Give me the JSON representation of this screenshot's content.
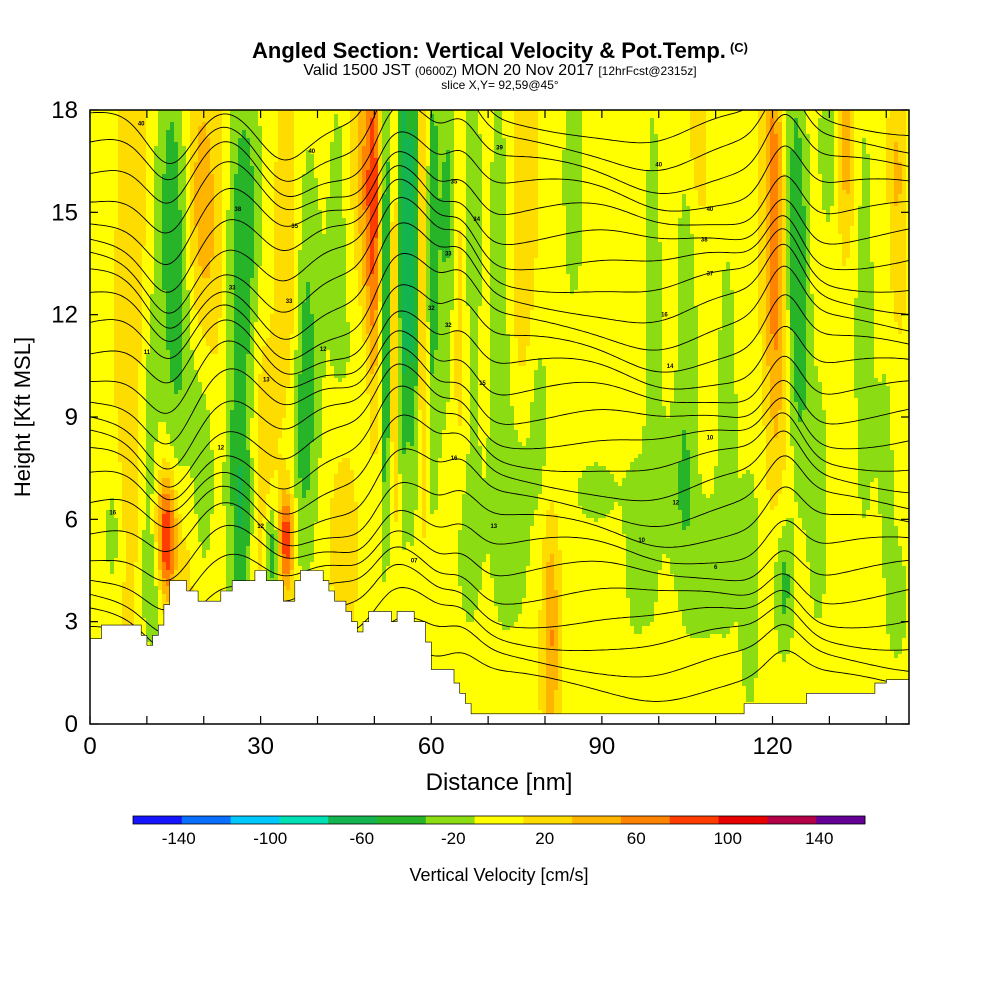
{
  "title": {
    "main": "Angled Section: Vertical Velocity & Pot.Temp.",
    "copyright": "(C)",
    "valid_prefix": "Valid 1500 JST",
    "valid_utc": "(0600Z)",
    "valid_date": "MON 20 Nov 2017",
    "forecast": "[12hrFcst@2315z]",
    "slice": "slice X,Y= 92,59@45°"
  },
  "chart_data": {
    "type": "heatmap",
    "xlabel": "Distance [nm]",
    "ylabel": "Height [Kft MSL]",
    "xlim": [
      0,
      144
    ],
    "ylim": [
      0,
      18
    ],
    "x_ticks": [
      0,
      30,
      60,
      90,
      120
    ],
    "y_ticks": [
      0,
      3,
      6,
      9,
      12,
      15,
      18
    ],
    "colorbar": {
      "label": "Vertical Velocity [cm/s]",
      "tick_labels": [
        "-140",
        "-100",
        "-60",
        "-20",
        "20",
        "60",
        "100",
        "140"
      ],
      "tick_values": [
        -140,
        -100,
        -60,
        -20,
        20,
        60,
        100,
        140
      ],
      "range": [
        -160,
        160
      ],
      "colors": [
        "#1414ff",
        "#0a6eff",
        "#00c8ff",
        "#00e0b4",
        "#14b450",
        "#28b428",
        "#8cdc14",
        "#ffff00",
        "#ffdc00",
        "#ffb400",
        "#ff8200",
        "#ff3c00",
        "#e60000",
        "#b40046",
        "#640096"
      ]
    },
    "background_value": 5,
    "features": [
      {
        "x": 4,
        "z": 5.5,
        "sx": 1.2,
        "sz": 1.4,
        "v": -25
      },
      {
        "x": 8,
        "z": 11,
        "sx": 2,
        "sz": 7,
        "v": 28
      },
      {
        "x": 10,
        "z": 8,
        "sx": 1.4,
        "sz": 4,
        "v": -35
      },
      {
        "x": 12,
        "z": 3.8,
        "sx": 2,
        "sz": 1.2,
        "v": -30
      },
      {
        "x": 13.5,
        "z": 5.3,
        "sx": 1.2,
        "sz": 1.4,
        "v": 110
      },
      {
        "x": 14,
        "z": 15,
        "sx": 2,
        "sz": 4,
        "v": -40
      },
      {
        "x": 16,
        "z": 10,
        "sx": 1.8,
        "sz": 5,
        "v": -30
      },
      {
        "x": 17,
        "z": 5,
        "sx": 1.5,
        "sz": 3,
        "v": 30
      },
      {
        "x": 19,
        "z": 15,
        "sx": 1.8,
        "sz": 3,
        "v": 35
      },
      {
        "x": 20,
        "z": 8,
        "sx": 2,
        "sz": 3,
        "v": -40
      },
      {
        "x": 22,
        "z": 12,
        "sx": 2,
        "sz": 5,
        "v": 25
      },
      {
        "x": 26,
        "z": 10,
        "sx": 2,
        "sz": 6,
        "v": -45
      },
      {
        "x": 27,
        "z": 6,
        "sx": 1.2,
        "sz": 2,
        "v": -30
      },
      {
        "x": 28,
        "z": 15,
        "sx": 2,
        "sz": 3,
        "v": -30
      },
      {
        "x": 30,
        "z": 7,
        "sx": 1.5,
        "sz": 4,
        "v": 25
      },
      {
        "x": 32,
        "z": 5,
        "sx": 1,
        "sz": 1,
        "v": -60
      },
      {
        "x": 34.5,
        "z": 5.4,
        "sx": 1,
        "sz": 1,
        "v": 95
      },
      {
        "x": 35,
        "z": 13,
        "sx": 1.5,
        "sz": 4,
        "v": 35
      },
      {
        "x": 37,
        "z": 8,
        "sx": 2,
        "sz": 3,
        "v": -30
      },
      {
        "x": 38,
        "z": 12,
        "sx": 1.8,
        "sz": 4,
        "v": -35
      },
      {
        "x": 44,
        "z": 14,
        "sx": 2,
        "sz": 5,
        "v": -25
      },
      {
        "x": 45,
        "z": 6,
        "sx": 2,
        "sz": 2,
        "v": 30
      },
      {
        "x": 48,
        "z": 16,
        "sx": 2,
        "sz": 3,
        "v": 35
      },
      {
        "x": 49,
        "z": 9,
        "sx": 2,
        "sz": 3,
        "v": -30
      },
      {
        "x": 50,
        "z": 14,
        "sx": 1.2,
        "sz": 5,
        "v": 70
      },
      {
        "x": 52,
        "z": 13,
        "sx": 0.8,
        "sz": 5,
        "v": -85
      },
      {
        "x": 53.5,
        "z": 12,
        "sx": 0.8,
        "sz": 4,
        "v": 55
      },
      {
        "x": 55,
        "z": 14,
        "sx": 0.8,
        "sz": 5,
        "v": -80
      },
      {
        "x": 57,
        "z": 14,
        "sx": 0.8,
        "sz": 5,
        "v": -75
      },
      {
        "x": 58.5,
        "z": 14,
        "sx": 0.8,
        "sz": 5,
        "v": 60
      },
      {
        "x": 60,
        "z": 14,
        "sx": 1,
        "sz": 5,
        "v": -55
      },
      {
        "x": 63,
        "z": 15,
        "sx": 1.2,
        "sz": 4,
        "v": -45
      },
      {
        "x": 65,
        "z": 12,
        "sx": 1.2,
        "sz": 5,
        "v": 30
      },
      {
        "x": 66,
        "z": 5.5,
        "sx": 2.5,
        "sz": 2.5,
        "v": -30
      },
      {
        "x": 67,
        "z": 15,
        "sx": 1.2,
        "sz": 4,
        "v": -40
      },
      {
        "x": 72,
        "z": 12,
        "sx": 1.5,
        "sz": 6,
        "v": -30
      },
      {
        "x": 75,
        "z": 6,
        "sx": 2,
        "sz": 2.5,
        "v": -30
      },
      {
        "x": 76,
        "z": 15,
        "sx": 1.5,
        "sz": 4,
        "v": 28
      },
      {
        "x": 79,
        "z": 9,
        "sx": 1.5,
        "sz": 2,
        "v": -25
      },
      {
        "x": 81,
        "z": 2.5,
        "sx": 1,
        "sz": 2.5,
        "v": 50
      },
      {
        "x": 85,
        "z": 16,
        "sx": 1.5,
        "sz": 3,
        "v": -30
      },
      {
        "x": 89,
        "z": 6.8,
        "sx": 4,
        "sz": 1,
        "v": -22
      },
      {
        "x": 96,
        "z": 5,
        "sx": 1.5,
        "sz": 2,
        "v": -30
      },
      {
        "x": 99,
        "z": 11,
        "sx": 1.2,
        "sz": 6,
        "v": -30
      },
      {
        "x": 103,
        "z": 7,
        "sx": 2,
        "sz": 2,
        "v": -25
      },
      {
        "x": 105,
        "z": 13,
        "sx": 1.3,
        "sz": 5,
        "v": -35
      },
      {
        "x": 106,
        "z": 17,
        "sx": 1.5,
        "sz": 2,
        "v": 28
      },
      {
        "x": 108,
        "z": 4.5,
        "sx": 3,
        "sz": 2,
        "v": -25
      },
      {
        "x": 112,
        "z": 9,
        "sx": 1.3,
        "sz": 4,
        "v": -30
      },
      {
        "x": 116,
        "z": 4,
        "sx": 1.5,
        "sz": 3,
        "v": -30
      },
      {
        "x": 120,
        "z": 15.5,
        "sx": 1.2,
        "sz": 4,
        "v": 50
      },
      {
        "x": 121,
        "z": 12,
        "sx": 1.2,
        "sz": 4,
        "v": 30
      },
      {
        "x": 122,
        "z": 4,
        "sx": 1.3,
        "sz": 1.5,
        "v": -45
      },
      {
        "x": 124,
        "z": 15,
        "sx": 1.5,
        "sz": 4,
        "v": -45
      },
      {
        "x": 125,
        "z": 11,
        "sx": 1.2,
        "sz": 3,
        "v": -30
      },
      {
        "x": 128,
        "z": 6.5,
        "sx": 1.5,
        "sz": 3,
        "v": -30
      },
      {
        "x": 130,
        "z": 17,
        "sx": 1.5,
        "sz": 2,
        "v": -30
      },
      {
        "x": 133,
        "z": 17,
        "sx": 1.2,
        "sz": 2,
        "v": 45
      },
      {
        "x": 136,
        "z": 12,
        "sx": 1.5,
        "sz": 6,
        "v": -25
      },
      {
        "x": 140,
        "z": 8,
        "sx": 1.5,
        "sz": 3,
        "v": -20
      },
      {
        "x": 142,
        "z": 16,
        "sx": 1,
        "sz": 3,
        "v": 30
      },
      {
        "x": 142,
        "z": 3.5,
        "sx": 1.5,
        "sz": 1.5,
        "v": -25
      }
    ],
    "terrain": {
      "x": [
        0,
        2,
        8,
        9,
        10,
        11,
        12,
        13,
        14,
        15,
        16,
        17,
        18,
        19,
        20,
        21,
        22,
        23,
        24,
        25,
        26,
        27,
        28,
        29,
        30,
        31,
        32,
        33,
        34,
        35,
        36,
        37,
        38,
        39,
        40,
        41,
        42,
        43,
        44,
        45,
        46,
        47,
        48,
        49,
        50,
        51,
        52,
        53,
        54,
        55,
        56,
        57,
        58,
        59,
        60,
        61,
        62,
        63,
        64,
        65,
        66,
        67,
        68,
        69,
        70,
        72,
        75,
        80,
        85,
        90,
        95,
        100,
        105,
        110,
        114,
        115,
        120,
        125,
        126,
        130,
        135,
        138,
        140,
        144
      ],
      "height": [
        2.5,
        2.9,
        2.9,
        2.6,
        2.3,
        2.6,
        2.9,
        3.5,
        4.2,
        4.2,
        4.2,
        3.9,
        3.9,
        3.6,
        3.6,
        3.6,
        3.6,
        3.9,
        3.9,
        4.2,
        4.2,
        4.2,
        4.2,
        4.5,
        4.5,
        4.2,
        4.2,
        4.2,
        3.6,
        3.6,
        4.2,
        4.5,
        4.5,
        4.5,
        4.5,
        4.2,
        3.9,
        3.6,
        3.6,
        3.3,
        3.0,
        2.7,
        3.0,
        3.3,
        3.3,
        3.3,
        3.3,
        3.0,
        3.3,
        3.3,
        3.3,
        3.0,
        3.0,
        2.4,
        1.6,
        1.6,
        1.6,
        1.6,
        1.2,
        0.9,
        0.6,
        0.3,
        0.3,
        0.3,
        0.3,
        0.3,
        0.3,
        0.3,
        0.3,
        0.3,
        0.3,
        0.3,
        0.3,
        0.3,
        0.3,
        0.6,
        0.6,
        0.6,
        0.9,
        0.9,
        0.9,
        1.2,
        1.3,
        1.3
      ]
    },
    "theta_lines": {
      "count": 26,
      "perturbations": [
        {
          "x": 14,
          "amp": -1.4,
          "w": 4
        },
        {
          "x": 34,
          "amp": -0.8,
          "w": 4
        },
        {
          "x": 53,
          "amp": 1.6,
          "w": 3
        },
        {
          "x": 58,
          "amp": 1.3,
          "w": 3
        },
        {
          "x": 65,
          "amp": 1.2,
          "w": 3
        },
        {
          "x": 122,
          "amp": 1.4,
          "w": 3
        },
        {
          "x": 24,
          "amp": 0.6,
          "w": 5
        },
        {
          "x": 100,
          "amp": -0.4,
          "w": 6
        }
      ],
      "contour_labels": [
        {
          "x": 9,
          "z": 17.6,
          "text": "40"
        },
        {
          "x": 39,
          "z": 16.8,
          "text": "40"
        },
        {
          "x": 72,
          "z": 16.9,
          "text": "39"
        },
        {
          "x": 100,
          "z": 16.4,
          "text": "40"
        },
        {
          "x": 109,
          "z": 15.1,
          "text": "40"
        },
        {
          "x": 108,
          "z": 14.2,
          "text": "38"
        },
        {
          "x": 109,
          "z": 13.2,
          "text": "37"
        },
        {
          "x": 26,
          "z": 15.1,
          "text": "38"
        },
        {
          "x": 36,
          "z": 14.6,
          "text": "35"
        },
        {
          "x": 64,
          "z": 15.9,
          "text": "35"
        },
        {
          "x": 68,
          "z": 14.8,
          "text": "34"
        },
        {
          "x": 63,
          "z": 13.8,
          "text": "33"
        },
        {
          "x": 60,
          "z": 12.2,
          "text": "32"
        },
        {
          "x": 63,
          "z": 11.7,
          "text": "32"
        },
        {
          "x": 25,
          "z": 12.8,
          "text": "33"
        },
        {
          "x": 35,
          "z": 12.4,
          "text": "33"
        },
        {
          "x": 101,
          "z": 12.0,
          "text": "16"
        },
        {
          "x": 10,
          "z": 10.9,
          "text": "11"
        },
        {
          "x": 41,
          "z": 11.0,
          "text": "12"
        },
        {
          "x": 31,
          "z": 10.1,
          "text": "13"
        },
        {
          "x": 69,
          "z": 10.0,
          "text": "15"
        },
        {
          "x": 102,
          "z": 10.5,
          "text": "14"
        },
        {
          "x": 109,
          "z": 8.4,
          "text": "10"
        },
        {
          "x": 23,
          "z": 8.1,
          "text": "12"
        },
        {
          "x": 64,
          "z": 7.8,
          "text": "16"
        },
        {
          "x": 103,
          "z": 6.5,
          "text": "12"
        },
        {
          "x": 4,
          "z": 6.2,
          "text": "16"
        },
        {
          "x": 71,
          "z": 5.8,
          "text": "13"
        },
        {
          "x": 30,
          "z": 5.8,
          "text": "12"
        },
        {
          "x": 97,
          "z": 5.4,
          "text": "10"
        },
        {
          "x": 57,
          "z": 4.8,
          "text": "07"
        },
        {
          "x": 110,
          "z": 4.6,
          "text": "6"
        }
      ]
    }
  }
}
